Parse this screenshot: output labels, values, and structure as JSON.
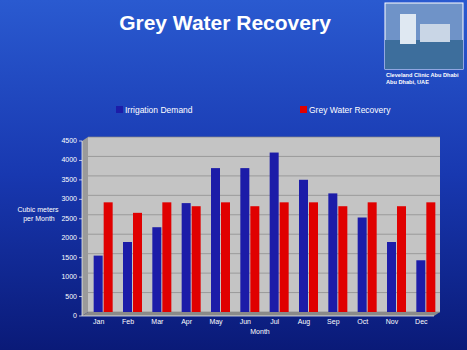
{
  "chart_data": {
    "type": "bar",
    "title": "Grey Water Recovery",
    "annotations": [
      "Cleveland Clinic Abu Dhabi",
      "Abu Dhabi, UAE"
    ],
    "x_label": "Month",
    "y_label": "Cubic meters per Month",
    "categories": [
      "Jan",
      "Feb",
      "Mar",
      "Apr",
      "May",
      "Jun",
      "Jul",
      "Aug",
      "Sep",
      "Oct",
      "Nov",
      "Dec"
    ],
    "series": [
      {
        "name": "Irrigation Demand",
        "color": "#1c1ca8",
        "values": [
          1450,
          1800,
          2180,
          2800,
          3700,
          3700,
          4100,
          3400,
          3050,
          2430,
          1800,
          1330
        ]
      },
      {
        "name": "Grey Water Recovery",
        "color": "#e00000",
        "values": [
          2820,
          2550,
          2820,
          2720,
          2820,
          2720,
          2820,
          2820,
          2720,
          2820,
          2720,
          2820
        ]
      }
    ],
    "ylim": [
      0,
      4500
    ],
    "yticks": [
      0,
      500,
      1000,
      1500,
      2000,
      2500,
      3000,
      3500,
      4000,
      4500
    ],
    "grid": true,
    "legend": "top"
  }
}
